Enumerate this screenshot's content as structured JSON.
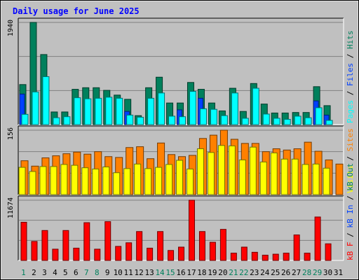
{
  "title": "Daily usage for June 2025",
  "colors": {
    "background": "#c0c0c0",
    "frame": "#808080",
    "title": "#0000ff",
    "hits": "#00805c",
    "files": "#00ffff",
    "pages": "#0040ff",
    "visits": "#ffff00",
    "sites": "#ff8000",
    "kbytes": "#ff0000",
    "weekend_day": "#00805c",
    "weekday_day": "#000000"
  },
  "chart_data": [
    {
      "type": "bar",
      "panel": "hits-files-pages",
      "y_max_label": "1940",
      "ylim": [
        0,
        1940
      ],
      "categories": [
        "1",
        "2",
        "3",
        "4",
        "5",
        "6",
        "7",
        "8",
        "9",
        "10",
        "11",
        "12",
        "13",
        "14",
        "15",
        "16",
        "17",
        "18",
        "19",
        "20",
        "21",
        "22",
        "23",
        "24",
        "25",
        "26",
        "27",
        "28",
        "29",
        "30",
        "31"
      ],
      "weekend_days": [
        "1",
        "7",
        "8",
        "14",
        "15",
        "21",
        "22",
        "28",
        "29"
      ],
      "series": [
        {
          "name": "Hits",
          "values": [
            760,
            1940,
            1330,
            240,
            240,
            670,
            700,
            700,
            650,
            560,
            480,
            170,
            700,
            900,
            410,
            410,
            800,
            670,
            410,
            260,
            690,
            250,
            780,
            390,
            220,
            220,
            230,
            230,
            720,
            360,
            0
          ]
        },
        {
          "name": "Files",
          "values": [
            195,
            620,
            910,
            130,
            150,
            510,
            490,
            500,
            520,
            500,
            180,
            140,
            500,
            600,
            160,
            150,
            630,
            300,
            290,
            170,
            600,
            120,
            690,
            200,
            120,
            100,
            160,
            130,
            320,
            80,
            0
          ]
        },
        {
          "name": "Pages",
          "values": [
            580,
            0,
            0,
            0,
            0,
            0,
            0,
            0,
            0,
            0,
            250,
            0,
            0,
            0,
            0,
            280,
            0,
            500,
            0,
            0,
            0,
            0,
            0,
            0,
            0,
            0,
            0,
            0,
            450,
            180,
            0
          ]
        }
      ],
      "legend": [
        "Pages",
        "Files",
        "Hits"
      ]
    },
    {
      "type": "bar",
      "panel": "visits-sites",
      "y_max_label": "156",
      "ylim": [
        0,
        156
      ],
      "categories": [
        "1",
        "2",
        "3",
        "4",
        "5",
        "6",
        "7",
        "8",
        "9",
        "10",
        "11",
        "12",
        "13",
        "14",
        "15",
        "16",
        "17",
        "18",
        "19",
        "20",
        "21",
        "22",
        "23",
        "24",
        "25",
        "26",
        "27",
        "28",
        "29",
        "30",
        "31"
      ],
      "series": [
        {
          "name": "Visits",
          "values": [
            66,
            56,
            68,
            68,
            73,
            71,
            65,
            62,
            67,
            53,
            63,
            74,
            63,
            66,
            73,
            83,
            62,
            111,
            102,
            119,
            118,
            84,
            115,
            79,
            101,
            86,
            86,
            73,
            74,
            64,
            0
          ]
        },
        {
          "name": "Sites",
          "values": [
            82,
            69,
            89,
            94,
            99,
            103,
            98,
            104,
            92,
            90,
            114,
            116,
            87,
            125,
            97,
            92,
            95,
            136,
            144,
            156,
            134,
            124,
            124,
            104,
            111,
            108,
            111,
            127,
            105,
            84,
            74
          ]
        }
      ],
      "legend": [
        "Sites",
        "Visits"
      ]
    },
    {
      "type": "bar",
      "panel": "kbytes",
      "y_max_label": "11674",
      "ylim": [
        0,
        11674
      ],
      "categories": [
        "1",
        "2",
        "3",
        "4",
        "5",
        "6",
        "7",
        "8",
        "9",
        "10",
        "11",
        "12",
        "13",
        "14",
        "15",
        "16",
        "17",
        "18",
        "19",
        "20",
        "21",
        "22",
        "23",
        "24",
        "25",
        "26",
        "27",
        "28",
        "29",
        "30",
        "31"
      ],
      "series": [
        {
          "name": "KBytes",
          "values": [
            7400,
            3680,
            5800,
            2180,
            5800,
            2380,
            7320,
            2180,
            7520,
            2720,
            3420,
            5600,
            2380,
            5600,
            1930,
            2580,
            11674,
            5600,
            3520,
            6020,
            1410,
            2580,
            1580,
            1020,
            1210,
            1410,
            4940,
            1410,
            8420,
            3220,
            0
          ]
        }
      ],
      "legend": [
        "KBytes F",
        "KBytes In",
        "KBytes Out"
      ]
    }
  ],
  "legends": {
    "top": [
      {
        "text": "Pages",
        "color": "#00ffff"
      },
      {
        "text": " / ",
        "color": "#000000"
      },
      {
        "text": "Files",
        "color": "#0040ff"
      },
      {
        "text": " / ",
        "color": "#000000"
      },
      {
        "text": "Hits",
        "color": "#00805c"
      }
    ],
    "middle": [
      {
        "text": "Visits",
        "color": "#ffff00"
      },
      {
        "text": " / ",
        "color": "#000000"
      },
      {
        "text": "Sites",
        "color": "#ff8000"
      }
    ],
    "bottom": [
      {
        "text": "kB F",
        "color": "#ff0000"
      },
      {
        "text": " / ",
        "color": "#000000"
      },
      {
        "text": "kB In",
        "color": "#0040ff"
      },
      {
        "text": " / ",
        "color": "#000000"
      },
      {
        "text": "kB Out",
        "color": "#00805c"
      }
    ]
  }
}
